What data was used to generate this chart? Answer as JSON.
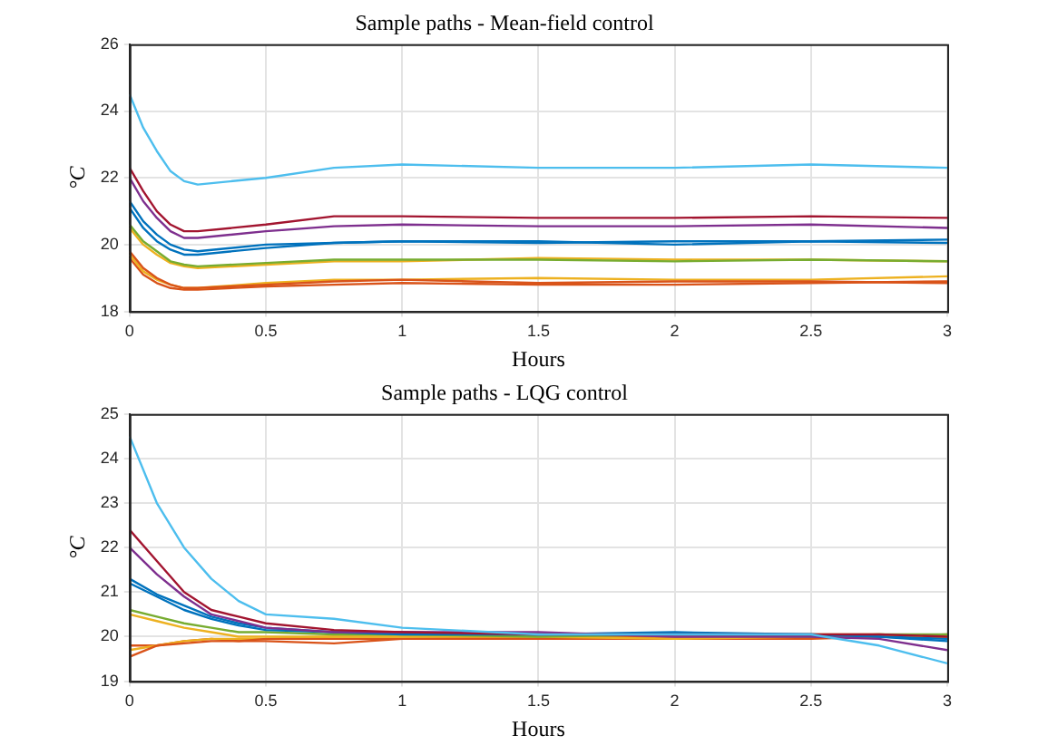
{
  "chart_data": [
    {
      "type": "line",
      "title": "Sample paths - Mean-field control",
      "xlabel": "Hours",
      "ylabel": "°C",
      "grid": true,
      "xlim": [
        0,
        3
      ],
      "xticks": [
        0,
        0.5,
        1,
        1.5,
        2,
        2.5,
        3
      ],
      "ylim": [
        18,
        26
      ],
      "yticks": [
        18,
        20,
        22,
        24,
        26
      ],
      "x": [
        0,
        0.05,
        0.1,
        0.15,
        0.2,
        0.25,
        0.5,
        0.75,
        1,
        1.5,
        2,
        2.5,
        3
      ],
      "series": [
        {
          "color": "#4dbeee",
          "values": [
            24.5,
            23.5,
            22.8,
            22.2,
            21.9,
            21.8,
            22.0,
            22.3,
            22.4,
            22.3,
            22.3,
            22.4,
            22.3
          ]
        },
        {
          "color": "#a2142f",
          "values": [
            22.3,
            21.6,
            21.0,
            20.6,
            20.4,
            20.4,
            20.6,
            20.85,
            20.85,
            20.8,
            20.8,
            20.85,
            20.8
          ]
        },
        {
          "color": "#7e2f8e",
          "values": [
            22.0,
            21.3,
            20.8,
            20.4,
            20.2,
            20.2,
            20.4,
            20.55,
            20.6,
            20.55,
            20.55,
            20.6,
            20.5
          ]
        },
        {
          "color": "#0072bd",
          "values": [
            21.3,
            20.7,
            20.3,
            20.0,
            19.85,
            19.8,
            20.0,
            20.05,
            20.1,
            20.1,
            20.0,
            20.1,
            20.05
          ]
        },
        {
          "color": "#0072bd",
          "values": [
            21.1,
            20.5,
            20.1,
            19.85,
            19.7,
            19.7,
            19.9,
            20.05,
            20.1,
            20.05,
            20.1,
            20.1,
            20.15
          ]
        },
        {
          "color": "#77ac30",
          "values": [
            20.6,
            20.1,
            19.8,
            19.5,
            19.4,
            19.35,
            19.45,
            19.55,
            19.55,
            19.55,
            19.5,
            19.55,
            19.5
          ]
        },
        {
          "color": "#edb120",
          "values": [
            20.5,
            20.0,
            19.7,
            19.45,
            19.35,
            19.3,
            19.4,
            19.5,
            19.5,
            19.6,
            19.55,
            19.55,
            19.5
          ]
        },
        {
          "color": "#d95319",
          "values": [
            19.8,
            19.3,
            19.0,
            18.8,
            18.7,
            18.7,
            18.8,
            18.9,
            18.95,
            18.85,
            18.9,
            18.9,
            18.85
          ]
        },
        {
          "color": "#edb120",
          "values": [
            19.7,
            19.2,
            18.95,
            18.8,
            18.7,
            18.7,
            18.85,
            18.95,
            18.95,
            19.0,
            18.95,
            18.95,
            19.05
          ]
        },
        {
          "color": "#d95319",
          "values": [
            19.6,
            19.1,
            18.85,
            18.7,
            18.65,
            18.65,
            18.75,
            18.8,
            18.85,
            18.8,
            18.8,
            18.85,
            18.9
          ]
        }
      ]
    },
    {
      "type": "line",
      "title": "Sample paths - LQG control",
      "xlabel": "Hours",
      "ylabel": "°C",
      "grid": true,
      "xlim": [
        0,
        3
      ],
      "xticks": [
        0,
        0.5,
        1,
        1.5,
        2,
        2.5,
        3
      ],
      "ylim": [
        19,
        25
      ],
      "yticks": [
        19,
        20,
        21,
        22,
        23,
        24,
        25
      ],
      "x": [
        0,
        0.1,
        0.2,
        0.3,
        0.4,
        0.5,
        0.75,
        1,
        1.5,
        2,
        2.5,
        2.75,
        3
      ],
      "series": [
        {
          "color": "#4dbeee",
          "values": [
            24.5,
            23.0,
            22.0,
            21.3,
            20.8,
            20.5,
            20.4,
            20.2,
            20.05,
            20.05,
            20.05,
            19.8,
            19.4
          ]
        },
        {
          "color": "#a2142f",
          "values": [
            22.4,
            21.7,
            21.0,
            20.6,
            20.45,
            20.3,
            20.15,
            20.1,
            20.05,
            20.05,
            20.05,
            20.05,
            20.0
          ]
        },
        {
          "color": "#7e2f8e",
          "values": [
            22.0,
            21.4,
            20.9,
            20.5,
            20.35,
            20.2,
            20.1,
            20.1,
            20.1,
            20.0,
            20.0,
            19.95,
            19.7
          ]
        },
        {
          "color": "#0072bd",
          "values": [
            21.3,
            20.95,
            20.7,
            20.45,
            20.3,
            20.2,
            20.1,
            20.1,
            20.05,
            20.1,
            20.05,
            20.0,
            19.9
          ]
        },
        {
          "color": "#0072bd",
          "values": [
            21.2,
            20.9,
            20.6,
            20.4,
            20.25,
            20.15,
            20.1,
            20.05,
            20.05,
            20.05,
            20.05,
            20.0,
            19.95
          ]
        },
        {
          "color": "#77ac30",
          "values": [
            20.6,
            20.45,
            20.3,
            20.2,
            20.1,
            20.1,
            20.05,
            20.05,
            20.0,
            20.05,
            20.0,
            20.05,
            20.05
          ]
        },
        {
          "color": "#edb120",
          "values": [
            20.5,
            20.35,
            20.2,
            20.1,
            20.0,
            20.0,
            20.0,
            20.0,
            20.0,
            19.95,
            20.0,
            20.0,
            20.0
          ]
        },
        {
          "color": "#d95319",
          "values": [
            19.55,
            19.8,
            19.85,
            19.9,
            19.9,
            19.95,
            19.95,
            19.95,
            20.0,
            20.0,
            20.0,
            20.0,
            20.05
          ]
        },
        {
          "color": "#edb120",
          "values": [
            19.7,
            19.8,
            19.9,
            19.95,
            19.95,
            19.95,
            20.0,
            20.0,
            20.0,
            20.0,
            20.05,
            20.05,
            20.0
          ]
        },
        {
          "color": "#d95319",
          "values": [
            19.8,
            19.8,
            19.9,
            19.95,
            19.9,
            19.9,
            19.85,
            19.95,
            19.95,
            19.95,
            19.95,
            20.0,
            20.0
          ]
        }
      ]
    }
  ]
}
